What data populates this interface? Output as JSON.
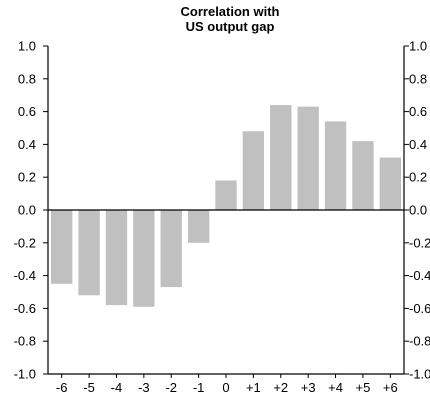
{
  "chart_data": {
    "type": "bar",
    "title_lines": [
      "Correlation with",
      "US output gap"
    ],
    "categories": [
      "-6",
      "-5",
      "-4",
      "-3",
      "-2",
      "-1",
      "0",
      "+1",
      "+2",
      "+3",
      "+4",
      "+5",
      "+6"
    ],
    "values": [
      -0.45,
      -0.52,
      -0.58,
      -0.59,
      -0.47,
      -0.2,
      0.18,
      0.48,
      0.64,
      0.63,
      0.54,
      0.42,
      0.32
    ],
    "ylim": [
      -1.0,
      1.0
    ],
    "yticks": [
      "-1.0",
      "-0.8",
      "-0.6",
      "-0.4",
      "-0.2",
      "0.0",
      "0.2",
      "0.4",
      "0.6",
      "0.8",
      "1.0"
    ],
    "grid": false,
    "bar_color": "#c0c0c0",
    "xlabel": "",
    "ylabel": ""
  }
}
